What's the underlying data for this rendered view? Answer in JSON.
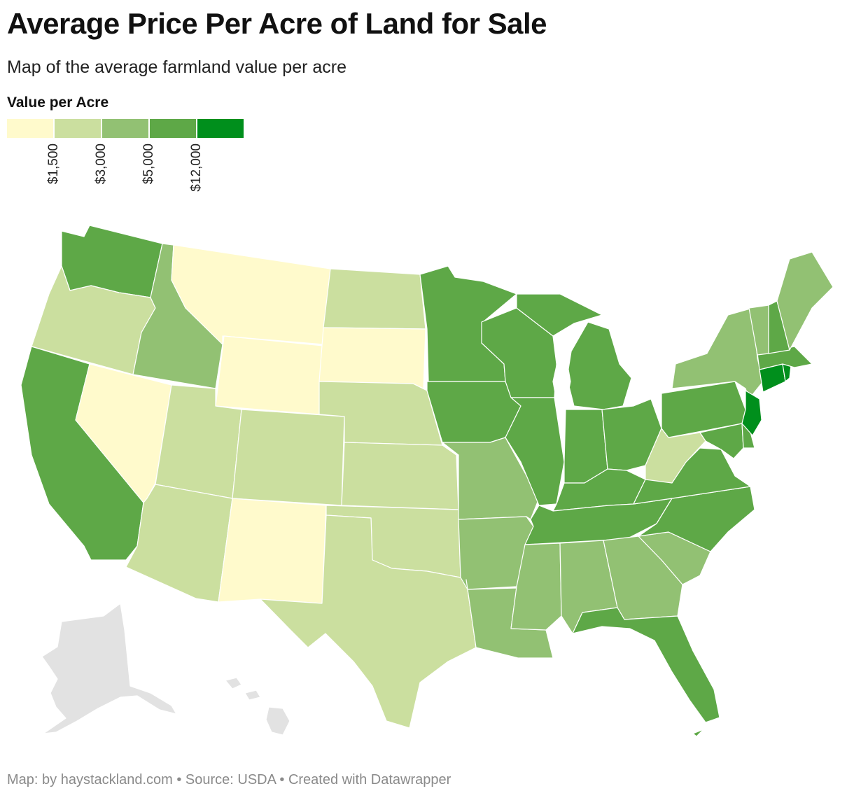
{
  "title": "Average Price Per Acre of Land for Sale",
  "subtitle": "Map of the average farmland value per acre",
  "legend": {
    "title": "Value per Acre",
    "colors": [
      "#fffacc",
      "#cbdf9f",
      "#92c173",
      "#5ea847",
      "#008f1c"
    ],
    "ticks": [
      "$1,500",
      "$3,000",
      "$5,000",
      "$12,000"
    ]
  },
  "chart_data": {
    "type": "choropleth",
    "title": "Average Price Per Acre of Land for Sale",
    "legend_title": "Value per Acre",
    "bins": [
      {
        "label": "< $1,500",
        "color": "#fffacc"
      },
      {
        "label": "$1,500 – $3,000",
        "color": "#cbdf9f"
      },
      {
        "label": "$3,000 – $5,000",
        "color": "#92c173"
      },
      {
        "label": "$5,000 – $12,000",
        "color": "#5ea847"
      },
      {
        "label": "> $12,000",
        "color": "#008f1c"
      }
    ],
    "no_data_color": "#e2e2e2",
    "states": {
      "WA": 3,
      "OR": 1,
      "CA": 3,
      "NV": 0,
      "ID": 2,
      "MT": 0,
      "WY": 0,
      "UT": 1,
      "AZ": 1,
      "CO": 1,
      "NM": 0,
      "ND": 1,
      "SD": 0,
      "NE": 1,
      "KS": 1,
      "OK": 1,
      "TX": 1,
      "MN": 3,
      "IA": 3,
      "MO": 2,
      "AR": 2,
      "LA": 2,
      "WI": 3,
      "IL": 3,
      "MS": 2,
      "MI": 3,
      "IN": 3,
      "KY": 3,
      "TN": 3,
      "AL": 2,
      "OH": 3,
      "GA": 2,
      "FL": 3,
      "SC": 2,
      "NC": 3,
      "VA": 3,
      "WV": 1,
      "PA": 3,
      "NY": 2,
      "MD": 3,
      "DE": 3,
      "NJ": 4,
      "CT": 4,
      "RI": 4,
      "MA": 3,
      "VT": 2,
      "NH": 3,
      "ME": 2,
      "AK": null,
      "HI": null
    }
  },
  "footer": "Map: by haystackland.com • Source: USDA • Created with Datawrapper"
}
